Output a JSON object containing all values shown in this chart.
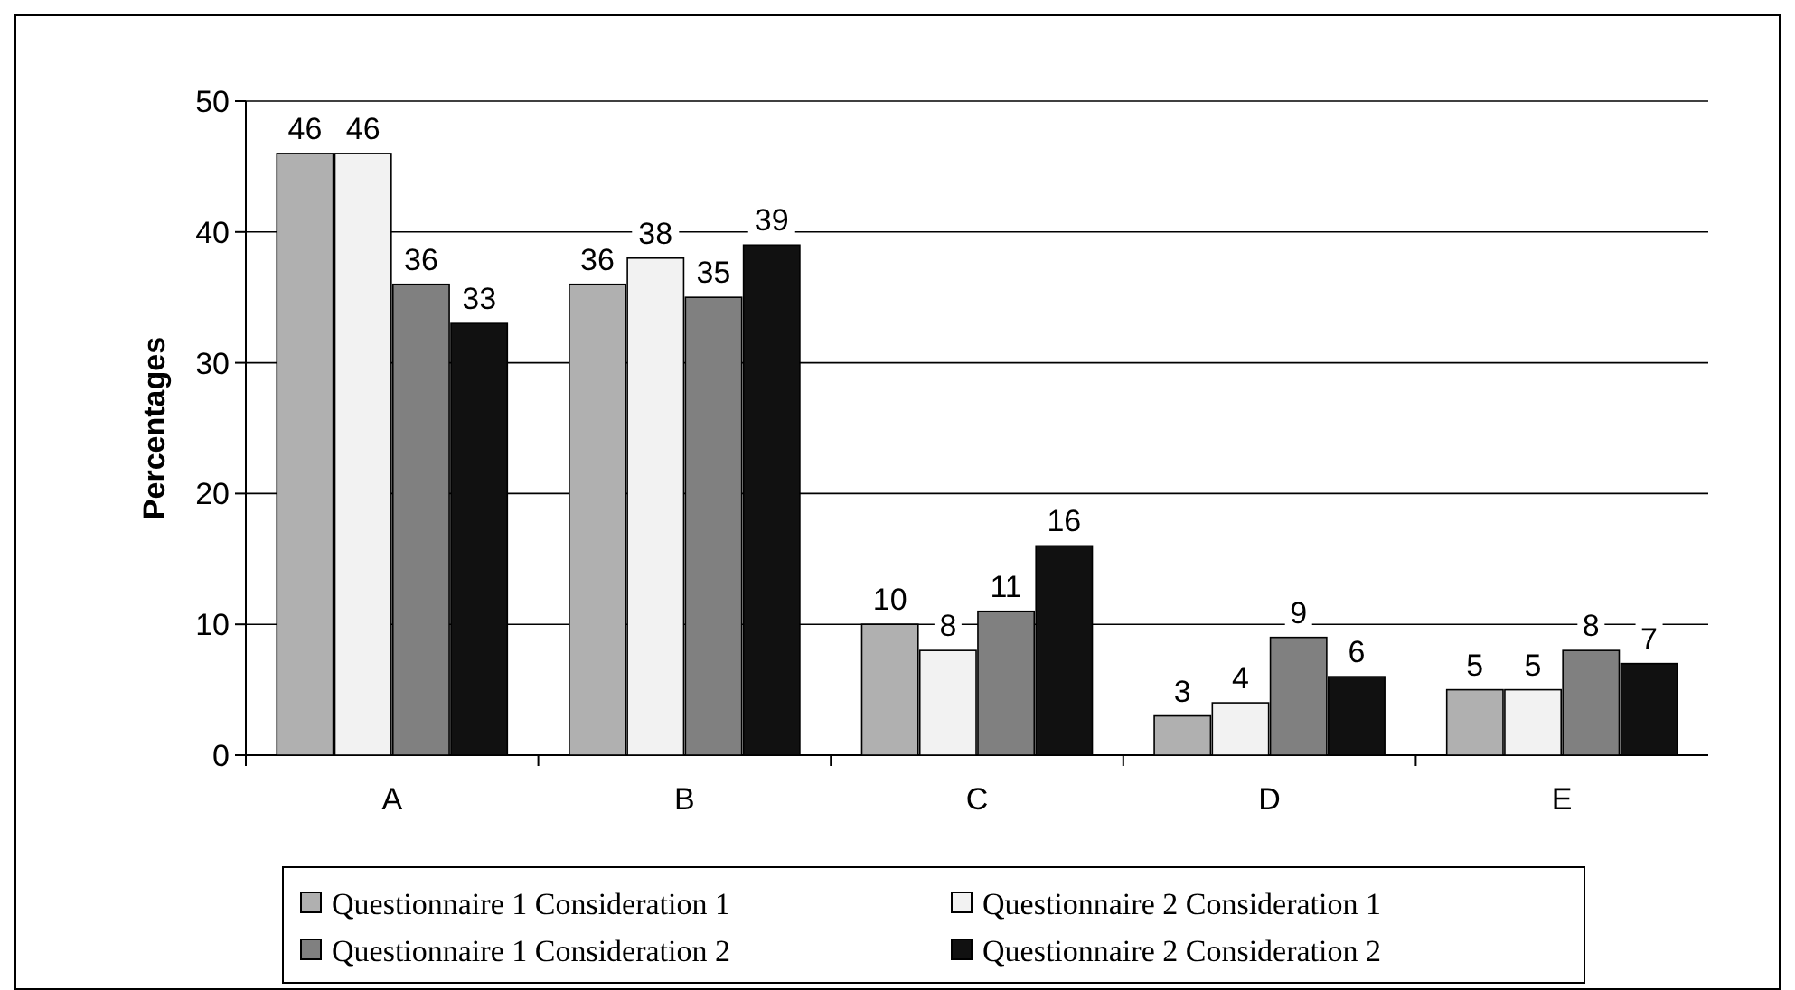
{
  "chart_data": {
    "type": "bar",
    "ylabel": "Percentages",
    "categories": [
      "A",
      "B",
      "C",
      "D",
      "E"
    ],
    "series": [
      {
        "name": "Questionnaire 1 Consideration 1",
        "color": "#b0b0b0",
        "values": [
          46,
          36,
          10,
          3,
          5
        ]
      },
      {
        "name": "Questionnaire 2 Consideration 1",
        "color": "#f2f2f2",
        "values": [
          46,
          38,
          8,
          4,
          5
        ]
      },
      {
        "name": "Questionnaire 1 Consideration 2",
        "color": "#808080",
        "values": [
          36,
          35,
          11,
          9,
          8
        ]
      },
      {
        "name": "Questionnaire 2 Consideration 2",
        "color": "#111111",
        "values": [
          33,
          39,
          16,
          6,
          7
        ]
      }
    ],
    "ylim": [
      0,
      50
    ],
    "yticks": [
      0,
      10,
      20,
      30,
      40,
      50
    ],
    "grid": "y",
    "legend": "bottom",
    "data_labels": true
  }
}
